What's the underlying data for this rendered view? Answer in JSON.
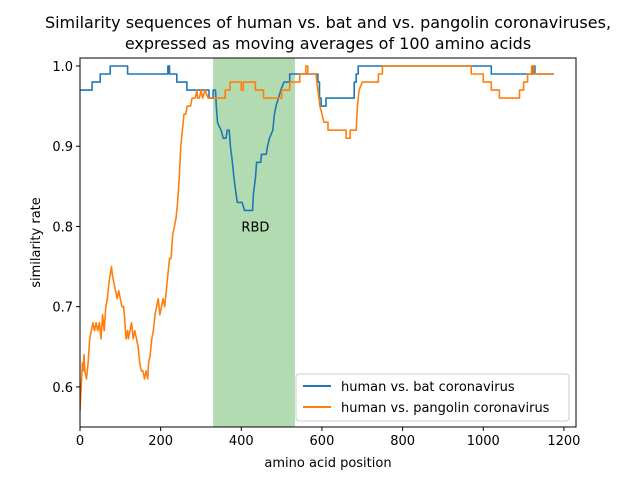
{
  "chart_data": {
    "type": "line",
    "title_lines": [
      "Similarity sequences of human vs. bat and vs. pangolin coronaviruses,",
      "expressed as moving averages of 100 amino acids"
    ],
    "xlabel": "amino acid position",
    "ylabel": "similarity rate",
    "xlim": [
      0,
      1230
    ],
    "ylim": [
      0.55,
      1.01
    ],
    "xticks": [
      0,
      200,
      400,
      600,
      800,
      1000,
      1200
    ],
    "yticks": [
      0.6,
      0.7,
      0.8,
      0.9,
      1.0
    ],
    "ytick_labels": [
      "0.6",
      "0.7",
      "0.8",
      "0.9",
      "1.0"
    ],
    "grid": false,
    "legend": "lower-right",
    "shaded_region": {
      "x0": 330,
      "x1": 533,
      "color": "#b3dbb1"
    },
    "annotation": {
      "text": "RBD",
      "x": 435,
      "y": 0.8
    },
    "series": [
      {
        "name": "human vs. bat coronavirus",
        "color": "#1f77b4",
        "points": [
          [
            0,
            0.97
          ],
          [
            30,
            0.97
          ],
          [
            30,
            0.98
          ],
          [
            50,
            0.98
          ],
          [
            50,
            0.99
          ],
          [
            75,
            0.99
          ],
          [
            75,
            1.0
          ],
          [
            118,
            1.0
          ],
          [
            118,
            0.99
          ],
          [
            218,
            0.99
          ],
          [
            218,
            1.0
          ],
          [
            222,
            1.0
          ],
          [
            222,
            0.99
          ],
          [
            240,
            0.99
          ],
          [
            240,
            0.98
          ],
          [
            265,
            0.98
          ],
          [
            265,
            0.97
          ],
          [
            320,
            0.97
          ],
          [
            320,
            0.96
          ],
          [
            330,
            0.96
          ],
          [
            330,
            0.97
          ],
          [
            336,
            0.97
          ],
          [
            338,
            0.95
          ],
          [
            341,
            0.93
          ],
          [
            345,
            0.925
          ],
          [
            350,
            0.92
          ],
          [
            355,
            0.91
          ],
          [
            362,
            0.91
          ],
          [
            365,
            0.92
          ],
          [
            370,
            0.92
          ],
          [
            373,
            0.9
          ],
          [
            378,
            0.88
          ],
          [
            382,
            0.86
          ],
          [
            387,
            0.84
          ],
          [
            390,
            0.83
          ],
          [
            398,
            0.83
          ],
          [
            402,
            0.83
          ],
          [
            408,
            0.82
          ],
          [
            428,
            0.82
          ],
          [
            430,
            0.84
          ],
          [
            435,
            0.86
          ],
          [
            438,
            0.88
          ],
          [
            448,
            0.88
          ],
          [
            450,
            0.89
          ],
          [
            462,
            0.89
          ],
          [
            465,
            0.9
          ],
          [
            470,
            0.91
          ],
          [
            478,
            0.92
          ],
          [
            482,
            0.94
          ],
          [
            486,
            0.95
          ],
          [
            492,
            0.96
          ],
          [
            498,
            0.97
          ],
          [
            506,
            0.98
          ],
          [
            520,
            0.98
          ],
          [
            520,
            0.99
          ],
          [
            590,
            0.99
          ],
          [
            590,
            0.98
          ],
          [
            594,
            0.98
          ],
          [
            594,
            0.96
          ],
          [
            598,
            0.96
          ],
          [
            598,
            0.95
          ],
          [
            610,
            0.95
          ],
          [
            610,
            0.96
          ],
          [
            680,
            0.96
          ],
          [
            680,
            0.98
          ],
          [
            685,
            0.98
          ],
          [
            685,
            0.99
          ],
          [
            690,
            0.99
          ],
          [
            690,
            1.0
          ],
          [
            1020,
            1.0
          ],
          [
            1020,
            0.99
          ],
          [
            1123,
            0.99
          ],
          [
            1123,
            1.0
          ],
          [
            1128,
            1.0
          ],
          [
            1128,
            0.99
          ],
          [
            1175,
            0.99
          ]
        ]
      },
      {
        "name": "human vs. pangolin coronavirus",
        "color": "#ff7f0e",
        "points": [
          [
            0,
            0.57
          ],
          [
            2,
            0.59
          ],
          [
            4,
            0.61
          ],
          [
            6,
            0.63
          ],
          [
            8,
            0.62
          ],
          [
            10,
            0.64
          ],
          [
            12,
            0.62
          ],
          [
            16,
            0.61
          ],
          [
            20,
            0.63
          ],
          [
            24,
            0.66
          ],
          [
            28,
            0.67
          ],
          [
            32,
            0.68
          ],
          [
            36,
            0.67
          ],
          [
            40,
            0.68
          ],
          [
            44,
            0.67
          ],
          [
            48,
            0.68
          ],
          [
            52,
            0.66
          ],
          [
            56,
            0.69
          ],
          [
            60,
            0.67
          ],
          [
            64,
            0.7
          ],
          [
            68,
            0.71
          ],
          [
            70,
            0.72
          ],
          [
            72,
            0.73
          ],
          [
            75,
            0.74
          ],
          [
            78,
            0.75
          ],
          [
            80,
            0.74
          ],
          [
            84,
            0.73
          ],
          [
            88,
            0.72
          ],
          [
            92,
            0.71
          ],
          [
            96,
            0.72
          ],
          [
            100,
            0.71
          ],
          [
            104,
            0.7
          ],
          [
            108,
            0.7
          ],
          [
            110,
            0.69
          ],
          [
            114,
            0.66
          ],
          [
            118,
            0.67
          ],
          [
            120,
            0.66
          ],
          [
            124,
            0.67
          ],
          [
            128,
            0.68
          ],
          [
            132,
            0.66
          ],
          [
            136,
            0.67
          ],
          [
            140,
            0.66
          ],
          [
            144,
            0.65
          ],
          [
            148,
            0.63
          ],
          [
            152,
            0.62
          ],
          [
            156,
            0.62
          ],
          [
            160,
            0.61
          ],
          [
            164,
            0.62
          ],
          [
            168,
            0.61
          ],
          [
            170,
            0.63
          ],
          [
            174,
            0.64
          ],
          [
            178,
            0.66
          ],
          [
            182,
            0.67
          ],
          [
            186,
            0.69
          ],
          [
            190,
            0.7
          ],
          [
            194,
            0.71
          ],
          [
            198,
            0.69
          ],
          [
            202,
            0.7
          ],
          [
            206,
            0.71
          ],
          [
            210,
            0.7
          ],
          [
            214,
            0.72
          ],
          [
            218,
            0.74
          ],
          [
            222,
            0.76
          ],
          [
            226,
            0.76
          ],
          [
            230,
            0.79
          ],
          [
            234,
            0.8
          ],
          [
            238,
            0.81
          ],
          [
            242,
            0.83
          ],
          [
            246,
            0.86
          ],
          [
            250,
            0.9
          ],
          [
            254,
            0.92
          ],
          [
            258,
            0.94
          ],
          [
            262,
            0.94
          ],
          [
            266,
            0.95
          ],
          [
            270,
            0.95
          ],
          [
            274,
            0.95
          ],
          [
            278,
            0.96
          ],
          [
            282,
            0.96
          ],
          [
            286,
            0.96
          ],
          [
            290,
            0.97
          ],
          [
            292,
            0.96
          ],
          [
            296,
            0.96
          ],
          [
            300,
            0.97
          ],
          [
            304,
            0.96
          ],
          [
            310,
            0.97
          ],
          [
            318,
            0.96
          ],
          [
            330,
            0.96
          ],
          [
            345,
            0.96
          ],
          [
            360,
            0.96
          ],
          [
            360,
            0.97
          ],
          [
            372,
            0.97
          ],
          [
            372,
            0.98
          ],
          [
            400,
            0.98
          ],
          [
            400,
            0.97
          ],
          [
            405,
            0.97
          ],
          [
            405,
            0.98
          ],
          [
            435,
            0.98
          ],
          [
            435,
            0.97
          ],
          [
            455,
            0.97
          ],
          [
            455,
            0.96
          ],
          [
            500,
            0.96
          ],
          [
            500,
            0.97
          ],
          [
            520,
            0.97
          ],
          [
            520,
            0.98
          ],
          [
            545,
            0.98
          ],
          [
            545,
            0.99
          ],
          [
            560,
            0.99
          ],
          [
            560,
            1.0
          ],
          [
            565,
            1.0
          ],
          [
            565,
            0.99
          ],
          [
            585,
            0.99
          ],
          [
            590,
            0.97
          ],
          [
            595,
            0.95
          ],
          [
            600,
            0.94
          ],
          [
            605,
            0.93
          ],
          [
            615,
            0.93
          ],
          [
            615,
            0.92
          ],
          [
            660,
            0.92
          ],
          [
            660,
            0.91
          ],
          [
            670,
            0.91
          ],
          [
            670,
            0.92
          ],
          [
            685,
            0.92
          ],
          [
            688,
            0.95
          ],
          [
            692,
            0.97
          ],
          [
            700,
            0.98
          ],
          [
            740,
            0.98
          ],
          [
            740,
            0.99
          ],
          [
            750,
            0.99
          ],
          [
            750,
            1.0
          ],
          [
            970,
            1.0
          ],
          [
            970,
            0.99
          ],
          [
            1000,
            0.99
          ],
          [
            1000,
            0.98
          ],
          [
            1020,
            0.98
          ],
          [
            1020,
            0.97
          ],
          [
            1040,
            0.97
          ],
          [
            1040,
            0.96
          ],
          [
            1090,
            0.96
          ],
          [
            1090,
            0.97
          ],
          [
            1100,
            0.97
          ],
          [
            1100,
            0.98
          ],
          [
            1110,
            0.98
          ],
          [
            1110,
            0.99
          ],
          [
            1120,
            0.99
          ],
          [
            1120,
            1.0
          ],
          [
            1125,
            1.0
          ],
          [
            1125,
            0.99
          ],
          [
            1175,
            0.99
          ]
        ]
      }
    ]
  }
}
